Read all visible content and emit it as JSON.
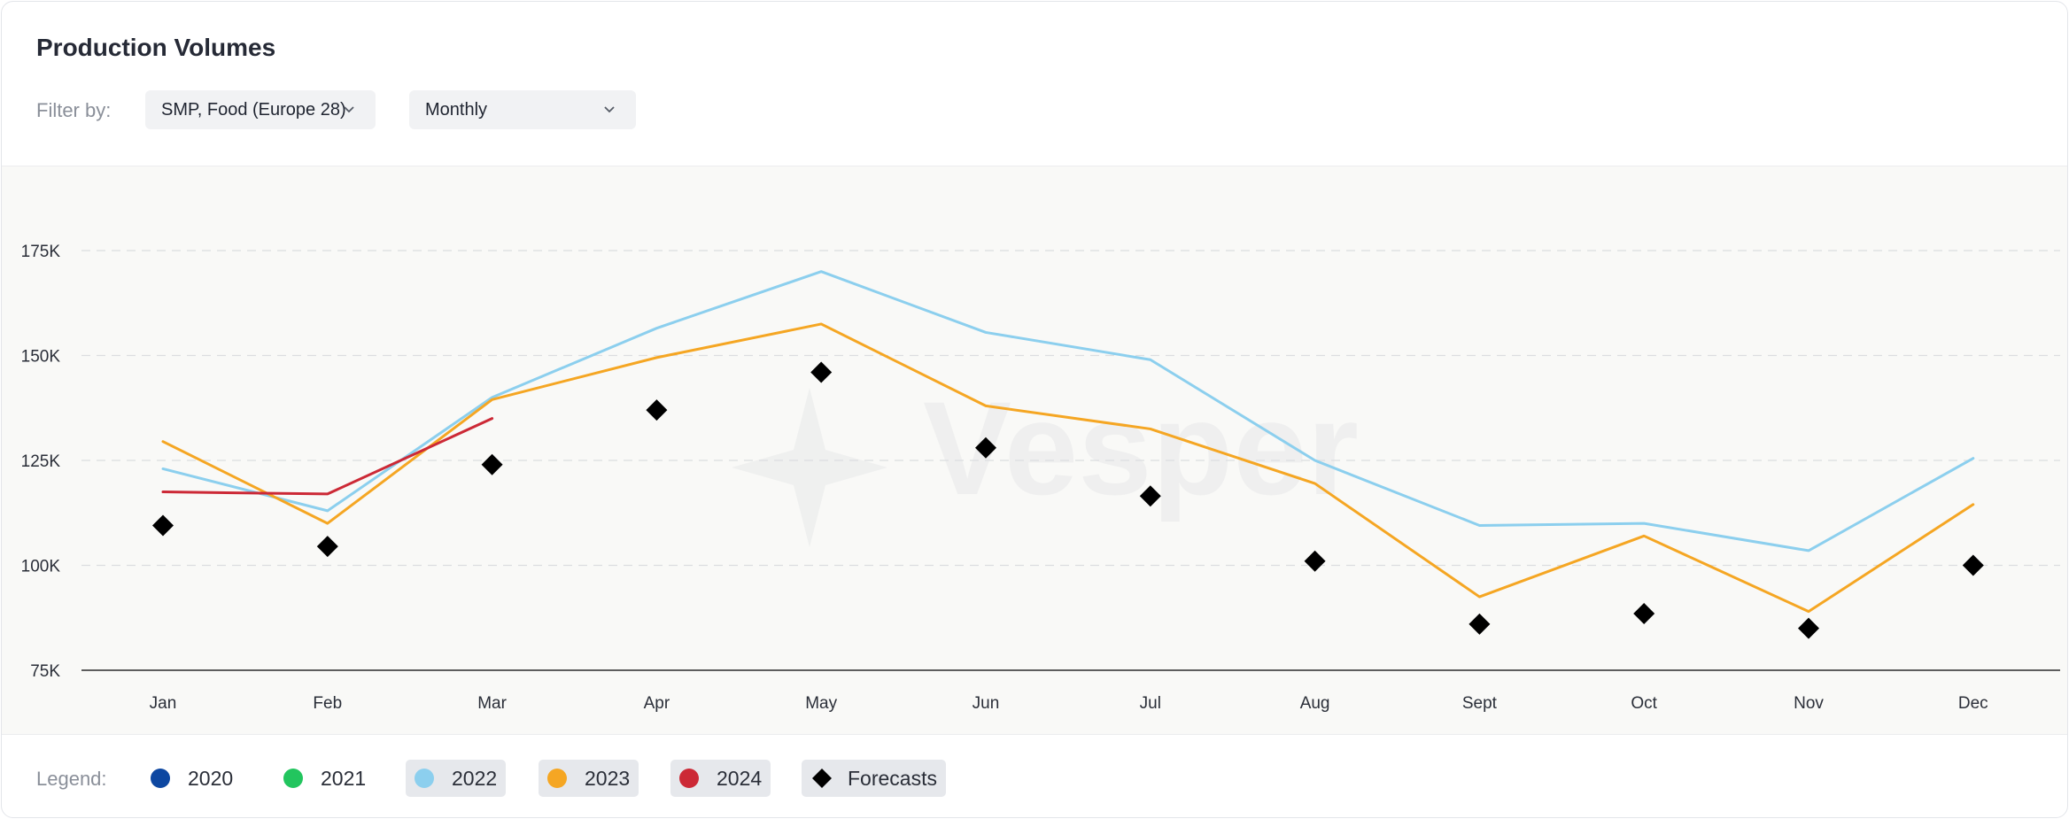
{
  "header": {
    "title": "Production Volumes"
  },
  "filters": {
    "label": "Filter by:",
    "product": {
      "value": "SMP, Food (Europe 28)",
      "icon": "chevron-down-icon"
    },
    "period": {
      "value": "Monthly",
      "icon": "chevron-down-icon"
    }
  },
  "legend": {
    "label": "Legend:",
    "items": [
      {
        "name": "2020",
        "color": "#0d47a1",
        "active": false,
        "marker": "circle"
      },
      {
        "name": "2021",
        "color": "#22c55e",
        "active": false,
        "marker": "circle"
      },
      {
        "name": "2022",
        "color": "#8ccfee",
        "active": true,
        "marker": "circle"
      },
      {
        "name": "2023",
        "color": "#f5a623",
        "active": true,
        "marker": "circle"
      },
      {
        "name": "2024",
        "color": "#cc2936",
        "active": true,
        "marker": "circle"
      },
      {
        "name": "Forecasts",
        "color": "#000000",
        "active": true,
        "marker": "diamond"
      }
    ]
  },
  "watermark": {
    "text": "Vesper"
  },
  "chart_data": {
    "type": "line",
    "categories": [
      "Jan",
      "Feb",
      "Mar",
      "Apr",
      "May",
      "Jun",
      "Jul",
      "Aug",
      "Sept",
      "Oct",
      "Nov",
      "Dec"
    ],
    "yticks": [
      {
        "value": 75000,
        "label": "75K"
      },
      {
        "value": 100000,
        "label": "100K"
      },
      {
        "value": 125000,
        "label": "125K"
      },
      {
        "value": 150000,
        "label": "150K"
      },
      {
        "value": 175000,
        "label": "175K"
      }
    ],
    "ylim": [
      75000,
      195000
    ],
    "grid": true,
    "legend_position": "bottom",
    "series": [
      {
        "name": "2022",
        "color": "#8ccfee",
        "values": [
          123000,
          113000,
          140000,
          156500,
          170000,
          155500,
          149000,
          125000,
          109500,
          110000,
          103500,
          125500
        ]
      },
      {
        "name": "2023",
        "color": "#f5a623",
        "values": [
          129500,
          110000,
          139500,
          149500,
          157500,
          138000,
          132500,
          119500,
          92500,
          107000,
          89000,
          114500
        ]
      },
      {
        "name": "2024",
        "color": "#cc2936",
        "values": [
          117500,
          117000,
          135000,
          null,
          null,
          null,
          null,
          null,
          null,
          null,
          null,
          null
        ]
      },
      {
        "name": "Forecasts",
        "color": "#000000",
        "marker": "diamond",
        "values": [
          109500,
          104500,
          124000,
          137000,
          146000,
          128000,
          116500,
          101000,
          86000,
          88500,
          85000,
          100000
        ]
      }
    ]
  }
}
